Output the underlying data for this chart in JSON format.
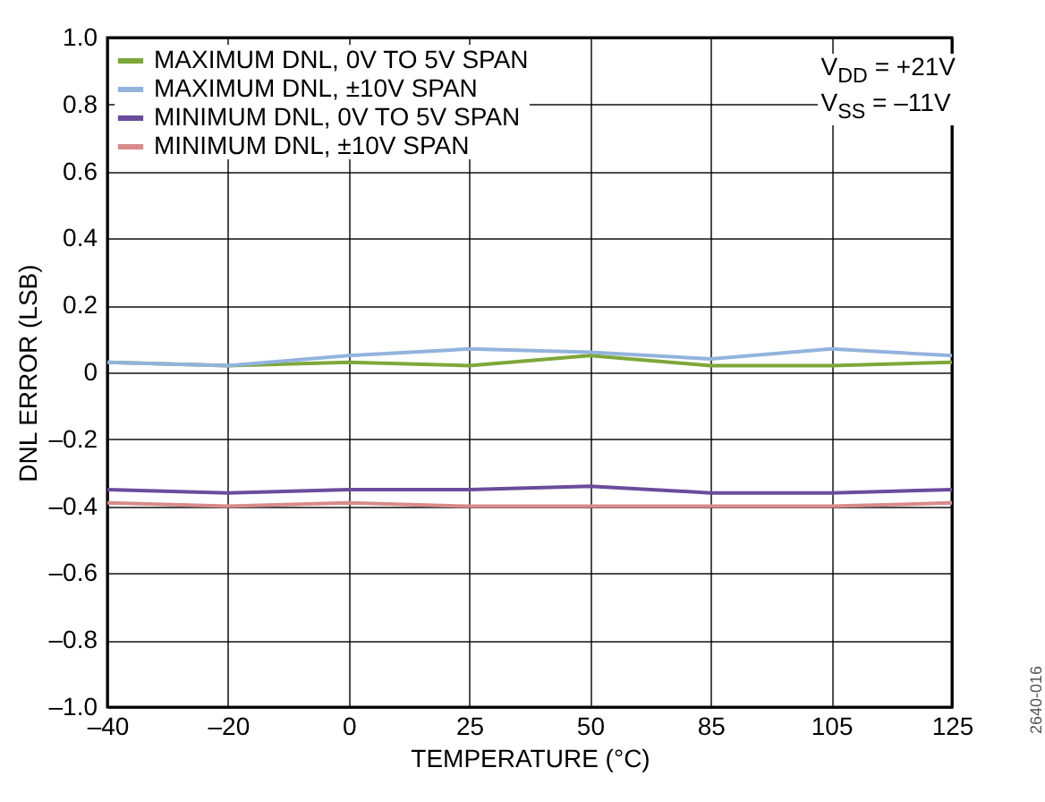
{
  "chart_data": {
    "type": "line",
    "xlabel": "TEMPERATURE (°C)",
    "ylabel": "DNL ERROR (LSB)",
    "categories": [
      "–40",
      "–20",
      "0",
      "25",
      "50",
      "85",
      "105",
      "125"
    ],
    "series": [
      {
        "name": "MAXIMUM DNL, 0V TO 5V SPAN",
        "color": "#7ea73a",
        "values": [
          0.03,
          0.02,
          0.03,
          0.02,
          0.05,
          0.02,
          0.02,
          0.03
        ]
      },
      {
        "name": "MAXIMUM DNL, ±10V SPAN",
        "color": "#93b3dd",
        "values": [
          0.03,
          0.02,
          0.05,
          0.07,
          0.06,
          0.04,
          0.07,
          0.05
        ]
      },
      {
        "name": "MINIMUM DNL, 0V TO 5V SPAN",
        "color": "#6a4c9c",
        "values": [
          -0.35,
          -0.36,
          -0.35,
          -0.35,
          -0.34,
          -0.36,
          -0.36,
          -0.35
        ]
      },
      {
        "name": "MINIMUM DNL, ±10V SPAN",
        "color": "#d98a8a",
        "values": [
          -0.39,
          -0.4,
          -0.39,
          -0.4,
          -0.4,
          -0.4,
          -0.4,
          -0.39
        ]
      }
    ],
    "ylim": [
      -1,
      1
    ],
    "yticks": [
      {
        "value": -1,
        "label": "–1.0"
      },
      {
        "value": -0.8,
        "label": "–0.8"
      },
      {
        "value": -0.6,
        "label": "–0.6"
      },
      {
        "value": -0.4,
        "label": "–0.4"
      },
      {
        "value": -0.2,
        "label": "–0.2"
      },
      0,
      {
        "value": 0.2,
        "label": "0.2"
      },
      {
        "value": 0.4,
        "label": "0.4"
      },
      {
        "value": 0.6,
        "label": "0.6"
      },
      {
        "value": 0.8,
        "label": "0.8"
      },
      {
        "value": 1,
        "label": "1.0"
      }
    ],
    "grid": true,
    "legend": "top left",
    "marker": "none",
    "line_style": "solid",
    "annotations": [
      "V$_{DD}$ = +21V",
      "V$_{SS}$ = –11V",
      "2640-016"
    ]
  }
}
